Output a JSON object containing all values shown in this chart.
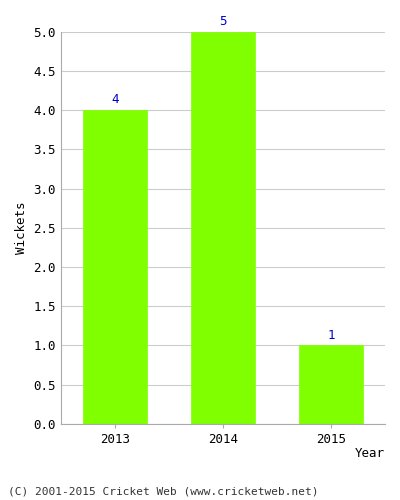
{
  "categories": [
    "2013",
    "2014",
    "2015"
  ],
  "values": [
    4,
    5,
    1
  ],
  "bar_color": "#7fff00",
  "bar_edge_color": "#7fff00",
  "xlabel": "Year",
  "ylabel": "Wickets",
  "ylim": [
    0.0,
    5.0
  ],
  "yticks": [
    0.0,
    0.5,
    1.0,
    1.5,
    2.0,
    2.5,
    3.0,
    3.5,
    4.0,
    4.5,
    5.0
  ],
  "label_color": "#0000cc",
  "label_fontsize": 9,
  "axis_label_fontsize": 9,
  "tick_fontsize": 9,
  "background_color": "#ffffff",
  "grid_color": "#cccccc",
  "footer_text": "(C) 2001-2015 Cricket Web (www.cricketweb.net)",
  "footer_fontsize": 8,
  "bar_width": 0.6
}
